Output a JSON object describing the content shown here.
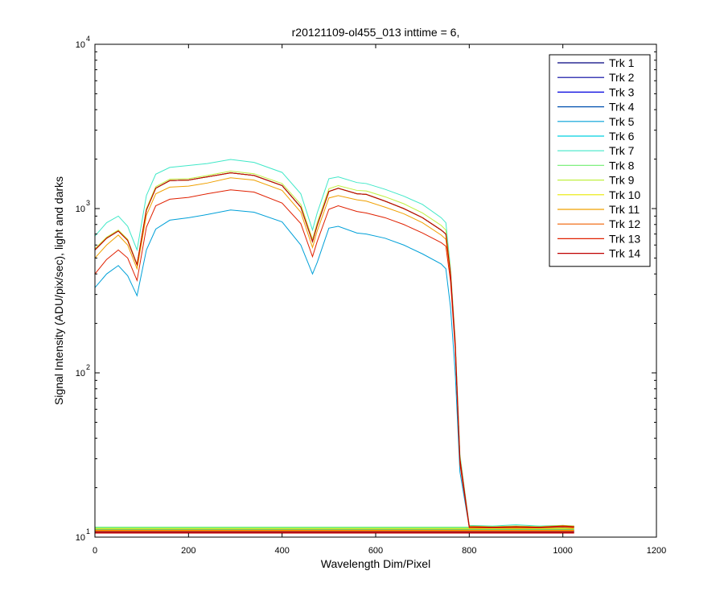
{
  "chart_data": {
    "type": "line",
    "title": "r20121109-ol455_013 inttime = 6,",
    "xlabel": "Wavelength Dim/Pixel",
    "ylabel": "Signal Intensity (ADU/pix/sec), light and darks",
    "xlim": [
      0,
      1200
    ],
    "ylim": [
      10,
      10000
    ],
    "yscale": "log",
    "x_ticks": [
      {
        "value": 0,
        "label": "0"
      },
      {
        "value": 200,
        "label": "200"
      },
      {
        "value": 400,
        "label": "400"
      },
      {
        "value": 600,
        "label": "600"
      },
      {
        "value": 800,
        "label": "800"
      },
      {
        "value": 1000,
        "label": "1000"
      },
      {
        "value": 1200,
        "label": "1200"
      }
    ],
    "y_ticks": [
      {
        "value": 10,
        "base": "10",
        "exp": "1"
      },
      {
        "value": 100,
        "base": "10",
        "exp": "2"
      },
      {
        "value": 1000,
        "base": "10",
        "exp": "3"
      },
      {
        "value": 10000,
        "base": "10",
        "exp": "4"
      }
    ],
    "grid": false,
    "legend_position": "top-right",
    "x": [
      0,
      25,
      50,
      70,
      90,
      110,
      130,
      160,
      200,
      240,
      290,
      340,
      400,
      440,
      465,
      475,
      500,
      520,
      560,
      580,
      620,
      660,
      700,
      740,
      750,
      760,
      770,
      780,
      800,
      850,
      900,
      950,
      1000,
      1024
    ],
    "series": [
      {
        "name": "Trk 1",
        "color": "#00007f",
        "values": [
          560,
          660,
          730,
          640,
          455,
          980,
          1330,
          1480,
          1490,
          1560,
          1650,
          1590,
          1380,
          1020,
          630,
          790,
          1270,
          1330,
          1230,
          1220,
          1110,
          1000,
          880,
          740,
          700,
          400,
          150,
          30,
          11.6,
          11.5,
          11.6,
          11.5,
          11.7,
          11.6
        ],
        "dark": 10.7
      },
      {
        "name": "Trk 2",
        "color": "#00009f",
        "values": [
          560,
          660,
          730,
          640,
          455,
          980,
          1330,
          1480,
          1490,
          1560,
          1650,
          1590,
          1380,
          1020,
          630,
          790,
          1270,
          1330,
          1230,
          1220,
          1110,
          1000,
          880,
          740,
          700,
          400,
          150,
          30,
          11.6,
          11.5,
          11.6,
          11.5,
          11.7,
          11.6
        ],
        "dark": 10.8
      },
      {
        "name": "Trk 3",
        "color": "#0000df",
        "values": [
          560,
          660,
          730,
          640,
          455,
          980,
          1330,
          1480,
          1490,
          1560,
          1650,
          1590,
          1380,
          1020,
          630,
          790,
          1270,
          1330,
          1230,
          1220,
          1110,
          1000,
          880,
          740,
          700,
          400,
          150,
          30,
          11.6,
          11.5,
          11.6,
          11.5,
          11.7,
          11.6
        ],
        "dark": 10.9
      },
      {
        "name": "Trk 4",
        "color": "#0050af",
        "values": [
          560,
          660,
          730,
          640,
          455,
          980,
          1330,
          1480,
          1490,
          1560,
          1650,
          1590,
          1380,
          1020,
          630,
          790,
          1270,
          1330,
          1230,
          1220,
          1110,
          1000,
          880,
          740,
          700,
          400,
          150,
          30,
          11.6,
          11.5,
          11.6,
          11.5,
          11.7,
          11.6
        ],
        "dark": 11.0
      },
      {
        "name": "Trk 5",
        "color": "#00a0d8",
        "values": [
          330,
          400,
          450,
          390,
          295,
          560,
          750,
          850,
          880,
          920,
          980,
          950,
          830,
          600,
          400,
          470,
          760,
          780,
          710,
          700,
          660,
          600,
          530,
          460,
          430,
          250,
          100,
          25,
          11.5,
          11.5,
          11.5,
          11.5,
          11.6,
          11.5
        ],
        "dark": 11.1
      },
      {
        "name": "Trk 6",
        "color": "#00d0e0",
        "values": [
          560,
          660,
          730,
          640,
          455,
          980,
          1330,
          1480,
          1490,
          1560,
          1650,
          1590,
          1380,
          1020,
          630,
          790,
          1270,
          1330,
          1230,
          1220,
          1110,
          1000,
          880,
          740,
          700,
          400,
          150,
          30,
          11.6,
          11.5,
          11.6,
          11.5,
          11.7,
          11.6
        ],
        "dark": 11.2
      },
      {
        "name": "Trk 7",
        "color": "#40e8c8",
        "values": [
          680,
          820,
          900,
          780,
          560,
          1200,
          1620,
          1780,
          1830,
          1880,
          1990,
          1910,
          1660,
          1230,
          740,
          940,
          1520,
          1560,
          1440,
          1420,
          1310,
          1190,
          1060,
          880,
          820,
          430,
          160,
          32,
          11.8,
          11.7,
          11.9,
          11.7,
          11.8,
          11.7
        ],
        "dark": 11.4
      },
      {
        "name": "Trk 8",
        "color": "#80f080",
        "values": [
          560,
          660,
          730,
          640,
          455,
          980,
          1330,
          1480,
          1490,
          1560,
          1650,
          1590,
          1380,
          1020,
          630,
          790,
          1270,
          1330,
          1230,
          1220,
          1110,
          1000,
          880,
          740,
          700,
          400,
          150,
          30,
          11.6,
          11.5,
          11.6,
          11.5,
          11.7,
          11.6
        ],
        "dark": 11.5
      },
      {
        "name": "Trk 9",
        "color": "#c0f040",
        "values": [
          570,
          670,
          740,
          650,
          460,
          1000,
          1360,
          1510,
          1520,
          1590,
          1690,
          1630,
          1420,
          1060,
          650,
          820,
          1320,
          1380,
          1290,
          1280,
          1180,
          1070,
          940,
          790,
          740,
          420,
          155,
          31,
          11.7,
          11.6,
          11.7,
          11.6,
          11.8,
          11.7
        ],
        "dark": 11.3
      },
      {
        "name": "Trk 10",
        "color": "#e8e800",
        "values": [
          560,
          660,
          730,
          640,
          455,
          980,
          1330,
          1480,
          1490,
          1560,
          1650,
          1590,
          1380,
          1020,
          630,
          790,
          1270,
          1330,
          1230,
          1220,
          1110,
          1000,
          880,
          740,
          700,
          400,
          150,
          30,
          11.6,
          11.5,
          11.6,
          11.5,
          11.7,
          11.6
        ],
        "dark": 11.2
      },
      {
        "name": "Trk 11",
        "color": "#f0a000",
        "values": [
          500,
          600,
          690,
          600,
          430,
          910,
          1230,
          1350,
          1370,
          1430,
          1540,
          1490,
          1290,
          950,
          580,
          730,
          1160,
          1200,
          1130,
          1110,
          1020,
          930,
          820,
          690,
          650,
          390,
          145,
          29,
          11.5,
          11.5,
          11.5,
          11.5,
          11.6,
          11.5
        ],
        "dark": 11.0
      },
      {
        "name": "Trk 12",
        "color": "#f06000",
        "values": [
          560,
          660,
          730,
          640,
          455,
          980,
          1330,
          1480,
          1490,
          1560,
          1650,
          1590,
          1380,
          1020,
          630,
          790,
          1270,
          1330,
          1230,
          1220,
          1110,
          1000,
          880,
          740,
          700,
          400,
          150,
          30,
          11.6,
          11.5,
          11.6,
          11.5,
          11.7,
          11.6
        ],
        "dark": 10.9
      },
      {
        "name": "Trk 13",
        "color": "#e02000",
        "values": [
          400,
          490,
          560,
          500,
          365,
          770,
          1040,
          1140,
          1170,
          1230,
          1300,
          1260,
          1080,
          810,
          510,
          630,
          990,
          1040,
          960,
          940,
          880,
          800,
          710,
          620,
          590,
          360,
          140,
          28,
          11.4,
          11.4,
          11.4,
          11.4,
          11.5,
          11.4
        ],
        "dark": 10.7
      },
      {
        "name": "Trk 14",
        "color": "#c00000",
        "values": [
          560,
          660,
          730,
          640,
          455,
          980,
          1330,
          1480,
          1490,
          1560,
          1650,
          1590,
          1380,
          1020,
          630,
          790,
          1270,
          1330,
          1230,
          1220,
          1110,
          1000,
          880,
          740,
          700,
          400,
          150,
          30,
          11.6,
          11.5,
          11.6,
          11.5,
          11.7,
          11.6
        ],
        "dark": 10.6
      }
    ]
  }
}
